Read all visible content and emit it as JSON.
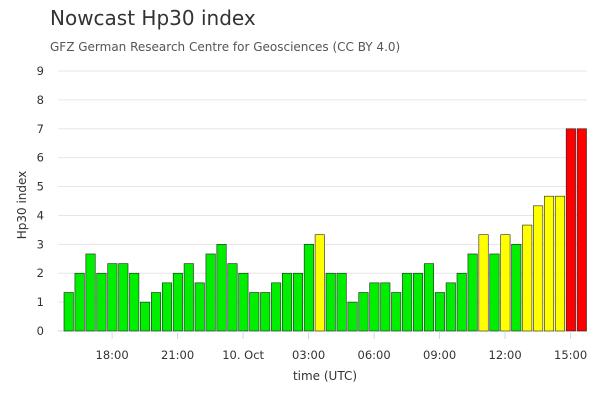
{
  "chart_data": {
    "type": "bar",
    "title": "Nowcast Hp30 index",
    "subtitle": "GFZ German Research Centre for Geosciences (CC BY 4.0)",
    "xlabel": "time (UTC)",
    "ylabel": "Hp30 index",
    "ylim": [
      0,
      9
    ],
    "yticks": [
      "0",
      "1",
      "2",
      "3",
      "4",
      "5",
      "6",
      "7",
      "8",
      "9"
    ],
    "xtick_labels": [
      "18:00",
      "21:00",
      "10. Oct",
      "03:00",
      "06:00",
      "09:00",
      "12:00",
      "15:00"
    ],
    "xtick_bar_index": [
      4.5,
      10.5,
      16.5,
      22.5,
      28.5,
      34.5,
      40.5,
      46.5
    ],
    "grid": true,
    "colors": {
      "low": "#00ee00",
      "mid": "#ffff00",
      "high": "#ff0000",
      "border": "#222222",
      "grid": "#e6e6e6"
    },
    "values": [
      1.333,
      2,
      2.667,
      2,
      2.333,
      2.333,
      2,
      1,
      1.333,
      1.667,
      2,
      2.333,
      1.667,
      2.667,
      3,
      2.333,
      2,
      1.333,
      1.333,
      1.667,
      2,
      2,
      3,
      3.333,
      2,
      2,
      1,
      1.333,
      1.667,
      1.667,
      1.333,
      2,
      2,
      2.333,
      1.333,
      1.667,
      2,
      2.667,
      3.333,
      2.667,
      3.333,
      3,
      3.667,
      4.333,
      4.667,
      4.667,
      7,
      7
    ],
    "categories": [
      "16:30",
      "17:00",
      "17:30",
      "18:00",
      "18:30",
      "19:00",
      "19:30",
      "20:00",
      "20:30",
      "21:00",
      "21:30",
      "22:00",
      "22:30",
      "23:00",
      "23:30",
      "00:00",
      "00:30",
      "01:00",
      "01:30",
      "02:00",
      "02:30",
      "03:00",
      "03:30",
      "04:00",
      "04:30",
      "05:00",
      "05:30",
      "06:00",
      "06:30",
      "07:00",
      "07:30",
      "08:00",
      "08:30",
      "09:00",
      "09:30",
      "10:00",
      "10:30",
      "11:00",
      "11:30",
      "12:00",
      "12:30",
      "13:00",
      "13:30",
      "14:00",
      "14:30",
      "15:00",
      "15:30",
      "16:00"
    ],
    "bar_colors": [
      "low",
      "low",
      "low",
      "low",
      "low",
      "low",
      "low",
      "low",
      "low",
      "low",
      "low",
      "low",
      "low",
      "low",
      "low",
      "low",
      "low",
      "low",
      "low",
      "low",
      "low",
      "low",
      "low",
      "mid",
      "low",
      "low",
      "low",
      "low",
      "low",
      "low",
      "low",
      "low",
      "low",
      "low",
      "low",
      "low",
      "low",
      "low",
      "mid",
      "low",
      "mid",
      "low",
      "mid",
      "mid",
      "mid",
      "mid",
      "high",
      "high"
    ]
  }
}
